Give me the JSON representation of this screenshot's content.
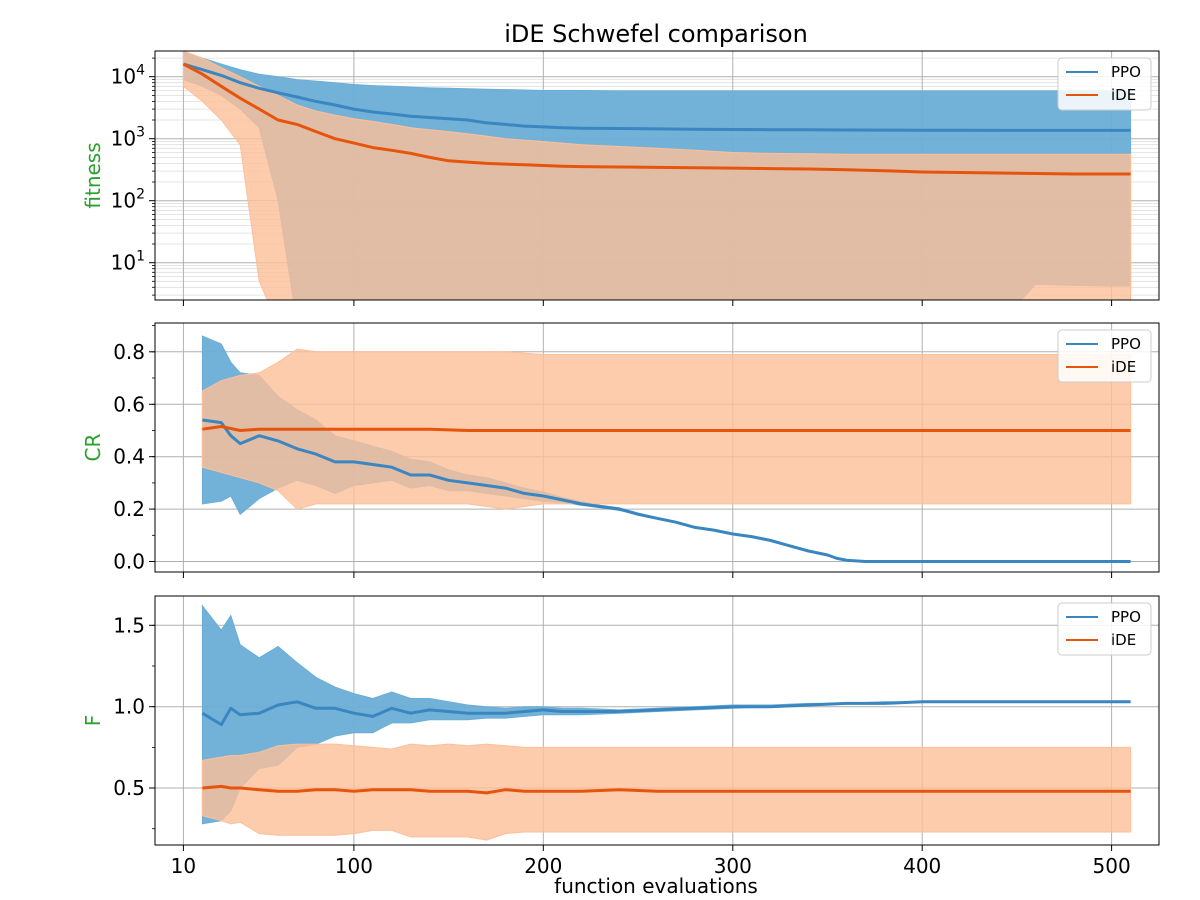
{
  "figure": {
    "title": "iDE Schwefel comparison",
    "xlabel": "function evaluations"
  },
  "colors": {
    "ppo_line": "#3a86c0",
    "ppo_band": "#6baed6",
    "ide_line": "#e6550d",
    "ide_band": "#fdbf99",
    "ylabel": "#2ca02c",
    "grid": "#b0b0b0",
    "grid_minor": "#dddddd"
  },
  "chart_data": [
    {
      "type": "line",
      "ylabel": "fitness",
      "yscale": "log",
      "xlim": [
        -5,
        525
      ],
      "ylim": [
        2.5,
        26000
      ],
      "xticks": [
        10,
        100,
        200,
        300,
        400,
        500
      ],
      "yticks": [
        {
          "value": 10,
          "base": "10",
          "exp": "1"
        },
        {
          "value": 100,
          "base": "10",
          "exp": "2"
        },
        {
          "value": 1000,
          "base": "10",
          "exp": "3"
        },
        {
          "value": 10000,
          "base": "10",
          "exp": "4"
        }
      ],
      "grid": true,
      "legend": "top-right",
      "series": [
        {
          "name": "PPO",
          "x": [
            10,
            20,
            30,
            40,
            50,
            60,
            70,
            80,
            90,
            100,
            110,
            120,
            130,
            140,
            150,
            160,
            170,
            180,
            190,
            200,
            210,
            220,
            240,
            260,
            280,
            300,
            320,
            340,
            360,
            380,
            400,
            420,
            440,
            460,
            480,
            500,
            510
          ],
          "y": [
            16000,
            13000,
            10500,
            8000,
            6500,
            5500,
            4700,
            4000,
            3500,
            3000,
            2700,
            2500,
            2300,
            2200,
            2100,
            2000,
            1800,
            1700,
            1600,
            1550,
            1500,
            1480,
            1460,
            1440,
            1420,
            1410,
            1400,
            1390,
            1380,
            1375,
            1370,
            1365,
            1360,
            1360,
            1360,
            1360,
            1360
          ],
          "lower": [
            9000,
            7000,
            5000,
            3000,
            1500,
            100,
            1,
            1,
            1,
            1,
            1,
            1,
            1,
            1,
            1,
            1,
            1,
            1,
            1,
            1,
            1,
            1,
            1,
            1,
            1,
            1,
            1,
            1,
            1,
            1,
            1,
            1,
            1,
            4.5,
            4.3,
            4.2,
            4.2
          ],
          "upper": [
            25000,
            20000,
            16000,
            13000,
            11000,
            10000,
            9000,
            8500,
            8000,
            7500,
            7200,
            7000,
            6800,
            6600,
            6500,
            6400,
            6300,
            6200,
            6100,
            6000,
            6000,
            6000,
            5900,
            5900,
            5900,
            5900,
            5900,
            5900,
            5900,
            5900,
            5900,
            5900,
            5900,
            5900,
            5900,
            5900,
            5900
          ]
        },
        {
          "name": "iDE",
          "x": [
            10,
            20,
            30,
            40,
            50,
            60,
            70,
            80,
            90,
            100,
            110,
            120,
            130,
            140,
            150,
            160,
            170,
            180,
            190,
            200,
            210,
            220,
            240,
            260,
            280,
            300,
            320,
            340,
            360,
            380,
            400,
            420,
            440,
            460,
            480,
            500,
            510
          ],
          "y": [
            16000,
            11000,
            7000,
            4500,
            3000,
            2000,
            1700,
            1300,
            1000,
            850,
            720,
            650,
            580,
            500,
            440,
            420,
            400,
            390,
            380,
            370,
            360,
            355,
            350,
            345,
            340,
            335,
            330,
            325,
            315,
            305,
            290,
            285,
            280,
            275,
            270,
            270,
            270
          ],
          "lower": [
            7000,
            4000,
            2000,
            800,
            5,
            1,
            1,
            1,
            1,
            1,
            1,
            1,
            1,
            1,
            1,
            1,
            1,
            1,
            1,
            1,
            1,
            1,
            1,
            1,
            1,
            1,
            1,
            1,
            1,
            1,
            1,
            1,
            1,
            1,
            1,
            1,
            1
          ],
          "upper": [
            26000,
            20000,
            14000,
            10000,
            7000,
            5000,
            3500,
            2800,
            2400,
            2100,
            1900,
            1700,
            1500,
            1400,
            1300,
            1200,
            1100,
            1000,
            950,
            900,
            850,
            800,
            750,
            700,
            650,
            600,
            580,
            570,
            560,
            560,
            560,
            560,
            560,
            560,
            560,
            560,
            560
          ]
        }
      ]
    },
    {
      "type": "line",
      "ylabel": "CR",
      "yscale": "linear",
      "xlim": [
        -5,
        525
      ],
      "ylim": [
        -0.04,
        0.91
      ],
      "xticks": [
        10,
        100,
        200,
        300,
        400,
        500
      ],
      "yticks": [
        {
          "value": 0.0,
          "label": "0.0"
        },
        {
          "value": 0.2,
          "label": "0.2"
        },
        {
          "value": 0.4,
          "label": "0.4"
        },
        {
          "value": 0.6,
          "label": "0.6"
        },
        {
          "value": 0.8,
          "label": "0.8"
        }
      ],
      "grid": true,
      "legend": "top-right",
      "series": [
        {
          "name": "PPO",
          "x": [
            20,
            30,
            35,
            40,
            50,
            60,
            70,
            80,
            90,
            100,
            110,
            120,
            130,
            140,
            150,
            160,
            170,
            180,
            190,
            200,
            210,
            220,
            230,
            240,
            250,
            260,
            270,
            280,
            290,
            300,
            310,
            320,
            330,
            340,
            350,
            355,
            360,
            370,
            380,
            400,
            420,
            440,
            460,
            480,
            500,
            510
          ],
          "y": [
            0.54,
            0.53,
            0.48,
            0.45,
            0.48,
            0.46,
            0.43,
            0.41,
            0.38,
            0.38,
            0.37,
            0.36,
            0.33,
            0.33,
            0.31,
            0.3,
            0.29,
            0.28,
            0.26,
            0.25,
            0.235,
            0.22,
            0.21,
            0.2,
            0.18,
            0.165,
            0.15,
            0.13,
            0.12,
            0.105,
            0.095,
            0.08,
            0.06,
            0.04,
            0.025,
            0.012,
            0.005,
            0.0,
            0.0,
            0.0,
            0.0,
            0.0,
            0.0,
            0.0,
            0.0,
            0.0
          ],
          "lower": [
            0.22,
            0.23,
            0.25,
            0.18,
            0.24,
            0.28,
            0.31,
            0.29,
            0.26,
            0.29,
            0.3,
            0.31,
            0.28,
            0.29,
            0.27,
            0.27,
            0.26,
            0.25,
            0.24,
            0.23,
            0.225,
            0.215,
            0.205,
            0.195,
            0.18,
            0.165,
            0.15,
            0.13,
            0.12,
            0.105,
            0.095,
            0.08,
            0.06,
            0.04,
            0.025,
            0.012,
            0.005,
            0.0,
            0.0,
            0.0,
            0.0,
            0.0,
            0.0,
            0.0,
            0.0,
            0.0
          ],
          "upper": [
            0.86,
            0.83,
            0.76,
            0.72,
            0.71,
            0.63,
            0.58,
            0.54,
            0.48,
            0.46,
            0.44,
            0.42,
            0.39,
            0.38,
            0.35,
            0.33,
            0.32,
            0.3,
            0.28,
            0.265,
            0.245,
            0.228,
            0.215,
            0.205,
            0.185,
            0.168,
            0.152,
            0.132,
            0.122,
            0.107,
            0.097,
            0.082,
            0.062,
            0.042,
            0.027,
            0.014,
            0.006,
            0.0,
            0.0,
            0.0,
            0.0,
            0.0,
            0.0,
            0.0,
            0.0,
            0.0
          ]
        },
        {
          "name": "iDE",
          "x": [
            20,
            30,
            40,
            50,
            60,
            70,
            80,
            90,
            100,
            120,
            140,
            160,
            180,
            200,
            250,
            300,
            350,
            400,
            450,
            500,
            510
          ],
          "y": [
            0.505,
            0.515,
            0.5,
            0.505,
            0.505,
            0.505,
            0.505,
            0.505,
            0.505,
            0.505,
            0.505,
            0.5,
            0.5,
            0.5,
            0.5,
            0.5,
            0.5,
            0.5,
            0.5,
            0.5,
            0.5
          ],
          "lower": [
            0.36,
            0.34,
            0.32,
            0.3,
            0.27,
            0.2,
            0.22,
            0.22,
            0.22,
            0.22,
            0.22,
            0.22,
            0.2,
            0.22,
            0.22,
            0.22,
            0.22,
            0.22,
            0.22,
            0.22,
            0.22
          ],
          "upper": [
            0.65,
            0.69,
            0.71,
            0.72,
            0.76,
            0.81,
            0.8,
            0.8,
            0.8,
            0.8,
            0.8,
            0.8,
            0.8,
            0.79,
            0.79,
            0.79,
            0.79,
            0.79,
            0.79,
            0.79,
            0.79
          ]
        }
      ]
    },
    {
      "type": "line",
      "ylabel": "F",
      "yscale": "linear",
      "xlim": [
        -5,
        525
      ],
      "ylim": [
        0.15,
        1.68
      ],
      "xticks": [
        10,
        100,
        200,
        300,
        400,
        500
      ],
      "yticks": [
        {
          "value": 0.5,
          "label": "0.5"
        },
        {
          "value": 1.0,
          "label": "1.0"
        },
        {
          "value": 1.5,
          "label": "1.5"
        }
      ],
      "grid": true,
      "legend": "top-right",
      "series": [
        {
          "name": "PPO",
          "x": [
            20,
            30,
            35,
            40,
            50,
            60,
            70,
            80,
            90,
            100,
            110,
            120,
            130,
            140,
            150,
            160,
            170,
            180,
            190,
            200,
            210,
            220,
            240,
            260,
            280,
            300,
            320,
            340,
            360,
            380,
            400,
            420,
            440,
            460,
            480,
            500,
            510
          ],
          "y": [
            0.96,
            0.89,
            0.99,
            0.95,
            0.96,
            1.01,
            1.03,
            0.99,
            0.99,
            0.96,
            0.94,
            0.99,
            0.96,
            0.98,
            0.97,
            0.96,
            0.96,
            0.96,
            0.97,
            0.98,
            0.97,
            0.97,
            0.97,
            0.98,
            0.99,
            1.0,
            1.0,
            1.01,
            1.02,
            1.02,
            1.03,
            1.03,
            1.03,
            1.03,
            1.03,
            1.03,
            1.03
          ],
          "lower": [
            0.28,
            0.3,
            0.36,
            0.5,
            0.62,
            0.64,
            0.75,
            0.77,
            0.82,
            0.84,
            0.84,
            0.9,
            0.9,
            0.92,
            0.92,
            0.92,
            0.93,
            0.93,
            0.94,
            0.95,
            0.95,
            0.95,
            0.96,
            0.97,
            0.98,
            0.99,
            1.0,
            1.01,
            1.02,
            1.02,
            1.03,
            1.03,
            1.03,
            1.03,
            1.03,
            1.03,
            1.03
          ],
          "upper": [
            1.62,
            1.47,
            1.56,
            1.38,
            1.3,
            1.37,
            1.27,
            1.18,
            1.12,
            1.08,
            1.05,
            1.09,
            1.05,
            1.05,
            1.03,
            1.01,
            1.0,
            0.99,
            1.0,
            1.0,
            0.99,
            0.99,
            0.98,
            0.99,
            1.0,
            1.01,
            1.01,
            1.02,
            1.02,
            1.03,
            1.03,
            1.03,
            1.03,
            1.03,
            1.03,
            1.03,
            1.03
          ]
        },
        {
          "name": "iDE",
          "x": [
            20,
            30,
            35,
            40,
            50,
            60,
            70,
            80,
            90,
            100,
            110,
            120,
            130,
            140,
            150,
            160,
            170,
            180,
            190,
            200,
            220,
            240,
            260,
            280,
            300,
            350,
            400,
            450,
            500,
            510
          ],
          "y": [
            0.5,
            0.51,
            0.5,
            0.5,
            0.49,
            0.48,
            0.48,
            0.49,
            0.49,
            0.48,
            0.49,
            0.49,
            0.49,
            0.48,
            0.48,
            0.48,
            0.47,
            0.49,
            0.48,
            0.48,
            0.48,
            0.49,
            0.48,
            0.48,
            0.48,
            0.48,
            0.48,
            0.48,
            0.48,
            0.48
          ],
          "lower": [
            0.33,
            0.3,
            0.28,
            0.29,
            0.22,
            0.21,
            0.21,
            0.21,
            0.21,
            0.22,
            0.24,
            0.24,
            0.2,
            0.2,
            0.2,
            0.2,
            0.18,
            0.22,
            0.23,
            0.23,
            0.23,
            0.23,
            0.23,
            0.23,
            0.23,
            0.23,
            0.23,
            0.23,
            0.23,
            0.23
          ],
          "upper": [
            0.67,
            0.69,
            0.7,
            0.7,
            0.72,
            0.76,
            0.77,
            0.77,
            0.77,
            0.76,
            0.75,
            0.74,
            0.77,
            0.76,
            0.77,
            0.76,
            0.77,
            0.76,
            0.75,
            0.75,
            0.75,
            0.75,
            0.75,
            0.75,
            0.75,
            0.75,
            0.75,
            0.75,
            0.75,
            0.75
          ]
        }
      ]
    }
  ]
}
